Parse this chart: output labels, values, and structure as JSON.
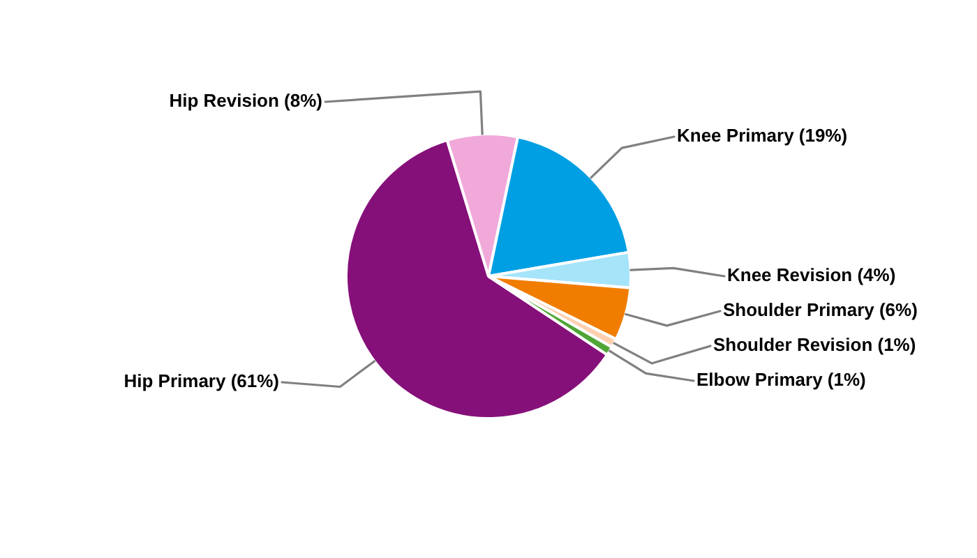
{
  "chart_data": {
    "type": "pie",
    "categories": [
      "Hip Primary",
      "Hip Revision",
      "Knee Primary",
      "Knee Revision",
      "Shoulder Primary",
      "Shoulder Revision",
      "Elbow Primary"
    ],
    "values": [
      61,
      8,
      19,
      4,
      6,
      1,
      1
    ],
    "colors": [
      "#86107a",
      "#f1a9da",
      "#009fe3",
      "#a6e4fa",
      "#f07d00",
      "#fdd0b0",
      "#4fa535"
    ],
    "value_labels": [
      "(61%)",
      "(8%)",
      "(19%)",
      "(4%)",
      "(6%)",
      "(1%)",
      "(1%)"
    ]
  }
}
